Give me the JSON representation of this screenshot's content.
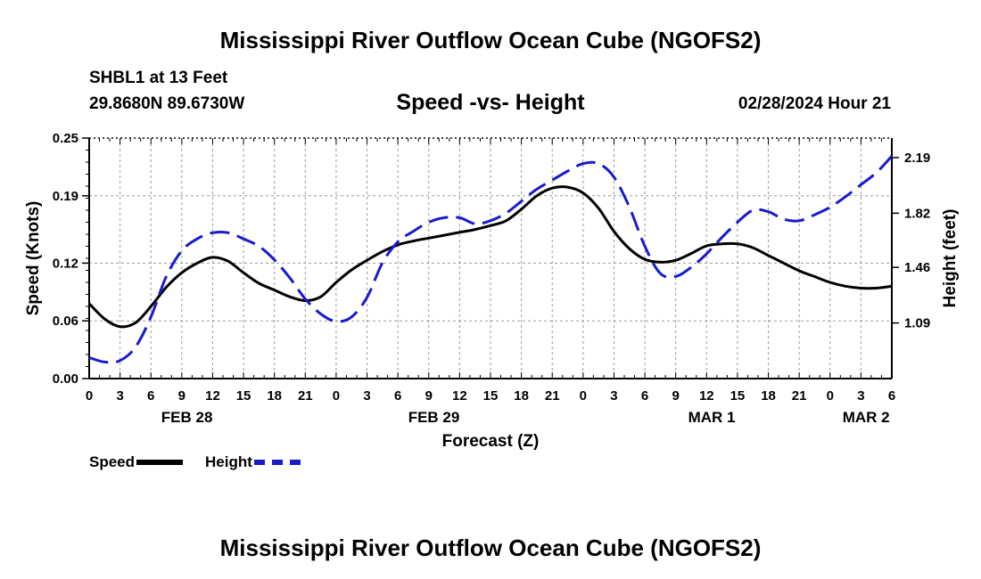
{
  "header": {
    "title": "Mississippi River Outflow Ocean Cube (NGOFS2)",
    "station": "SHBL1 at 13 Feet",
    "coords": "29.8680N  89.6730W",
    "subtitle": "Speed -vs- Height",
    "stamp": "02/28/2024 Hour 21"
  },
  "footer": {
    "title": "Mississippi River Outflow Ocean Cube (NGOFS2)"
  },
  "legend": {
    "speed_label": "Speed",
    "height_label": "Height"
  },
  "colors": {
    "speed": "#000000",
    "height": "#1a1acc",
    "grid": "#9a9a9a",
    "axis": "#000000"
  },
  "chart_data": {
    "type": "line",
    "title": "Speed -vs- Height",
    "xlabel": "Forecast (Z)",
    "ylabel_left": "Speed (Knots)",
    "ylabel_right": "Height (feet)",
    "x_range": [
      0,
      78
    ],
    "y_left_range": [
      0.0,
      0.25
    ],
    "y_right_range": [
      0.72,
      2.32
    ],
    "x_ticks": [
      0,
      3,
      6,
      9,
      12,
      15,
      18,
      21,
      24,
      27,
      30,
      33,
      36,
      39,
      42,
      45,
      48,
      51,
      54,
      57,
      60,
      63,
      66,
      69,
      72,
      75,
      78
    ],
    "x_tick_labels": [
      "0",
      "3",
      "6",
      "9",
      "12",
      "15",
      "18",
      "21",
      "0",
      "3",
      "6",
      "9",
      "12",
      "15",
      "18",
      "21",
      "0",
      "3",
      "6",
      "9",
      "12",
      "15",
      "18",
      "21",
      "0",
      "3",
      "6"
    ],
    "day_labels": [
      {
        "label": "FEB 28",
        "hour": 9.5
      },
      {
        "label": "FEB 29",
        "hour": 33.5
      },
      {
        "label": "MAR 1",
        "hour": 60.5
      },
      {
        "label": "MAR 2",
        "hour": 75.5
      }
    ],
    "y_left_ticks": [
      0.0,
      0.06,
      0.12,
      0.19,
      0.25
    ],
    "y_left_tick_labels": [
      "0.00",
      "0.06",
      "0.12",
      "0.19",
      "0.25"
    ],
    "y_right_ticks": [
      1.09,
      1.46,
      1.82,
      2.19
    ],
    "y_right_tick_labels": [
      "1.09",
      "1.46",
      "1.82",
      "2.19"
    ],
    "grid": true,
    "series": [
      {
        "name": "Speed",
        "axis": "left",
        "style": "solid",
        "x": [
          0,
          1.5,
          3,
          4.5,
          6,
          7.5,
          9,
          10.5,
          12,
          13.5,
          15,
          16.5,
          18,
          19.5,
          21,
          22.5,
          24,
          25.5,
          27,
          28.5,
          30,
          31.5,
          33,
          34.5,
          36,
          37.5,
          39,
          40.5,
          42,
          43.5,
          45,
          46.5,
          48,
          49.5,
          51,
          52.5,
          54,
          55.5,
          57,
          58.5,
          60,
          61.5,
          63,
          64.5,
          66,
          67.5,
          69,
          70.5,
          72,
          73.5,
          75,
          76.5,
          78
        ],
        "values": [
          0.078,
          0.062,
          0.054,
          0.058,
          0.075,
          0.095,
          0.11,
          0.12,
          0.126,
          0.122,
          0.11,
          0.099,
          0.092,
          0.085,
          0.081,
          0.085,
          0.1,
          0.113,
          0.123,
          0.132,
          0.139,
          0.143,
          0.146,
          0.149,
          0.152,
          0.155,
          0.159,
          0.164,
          0.176,
          0.19,
          0.198,
          0.199,
          0.193,
          0.177,
          0.153,
          0.135,
          0.124,
          0.121,
          0.123,
          0.13,
          0.138,
          0.14,
          0.14,
          0.136,
          0.128,
          0.12,
          0.112,
          0.106,
          0.1,
          0.096,
          0.094,
          0.094,
          0.096
        ]
      },
      {
        "name": "Height",
        "axis": "right",
        "style": "dashed",
        "x": [
          0,
          1.5,
          3,
          4.5,
          6,
          7.5,
          9,
          10.5,
          12,
          13.5,
          15,
          16.5,
          18,
          19.5,
          21,
          22.5,
          24,
          25.5,
          27,
          28.5,
          30,
          31.5,
          33,
          34.5,
          36,
          37.5,
          39,
          40.5,
          42,
          43.5,
          45,
          46.5,
          48,
          49.5,
          51,
          52.5,
          54,
          55.5,
          57,
          58.5,
          60,
          61.5,
          63,
          64.5,
          66,
          67.5,
          69,
          70.5,
          72,
          73.5,
          75,
          76.5,
          78
        ],
        "values": [
          0.86,
          0.83,
          0.84,
          0.93,
          1.13,
          1.4,
          1.57,
          1.65,
          1.69,
          1.69,
          1.65,
          1.6,
          1.51,
          1.39,
          1.25,
          1.15,
          1.1,
          1.13,
          1.26,
          1.49,
          1.63,
          1.7,
          1.76,
          1.79,
          1.79,
          1.75,
          1.77,
          1.82,
          1.9,
          1.98,
          2.04,
          2.1,
          2.15,
          2.15,
          2.06,
          1.86,
          1.6,
          1.42,
          1.4,
          1.46,
          1.55,
          1.66,
          1.76,
          1.84,
          1.83,
          1.78,
          1.77,
          1.81,
          1.86,
          1.93,
          2.01,
          2.09,
          2.2
        ]
      }
    ]
  }
}
